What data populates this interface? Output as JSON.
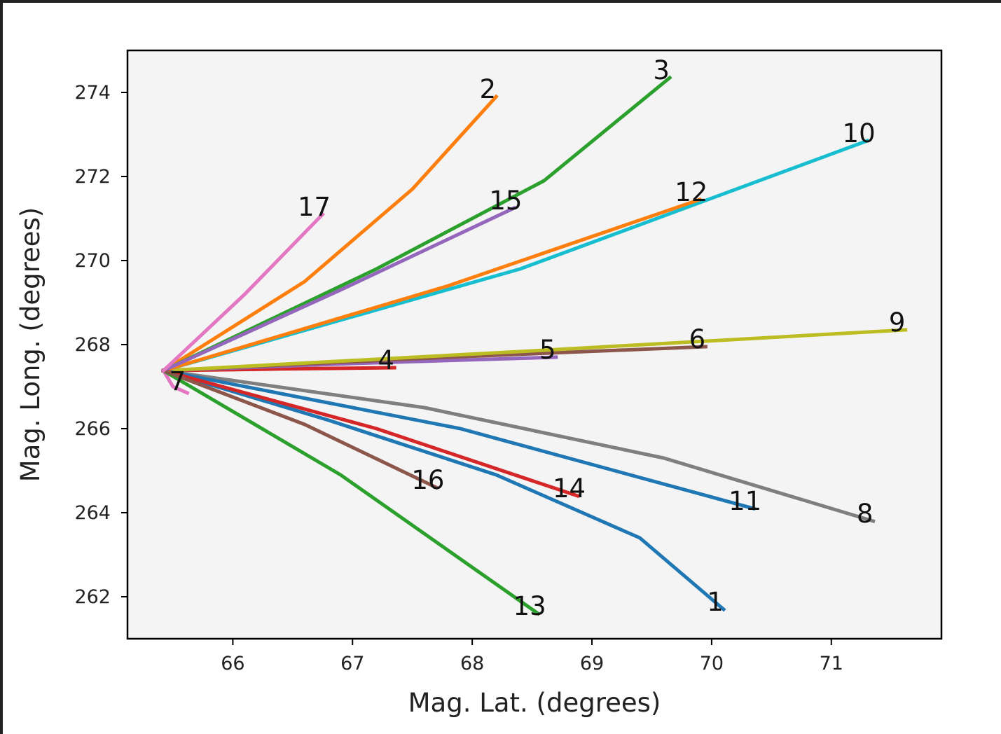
{
  "chart_data": {
    "type": "line",
    "title": "",
    "xlabel": "Mag. Lat. (degrees)",
    "ylabel": "Mag. Long. (degrees)",
    "xlim": [
      65.12,
      71.92
    ],
    "ylim": [
      261.0,
      275.0
    ],
    "xticks": [
      66,
      67,
      68,
      69,
      70,
      71
    ],
    "yticks": [
      262,
      264,
      266,
      268,
      270,
      272,
      274
    ],
    "grid": false,
    "legend": "none",
    "plot_background": "#f4f4f4",
    "origin": {
      "x": 65.42,
      "y": 267.38
    },
    "series": [
      {
        "label": "1",
        "color": "#1f77b4",
        "x": [
          65.42,
          66.8,
          68.2,
          69.4,
          70.1
        ],
        "y": [
          267.38,
          266.2,
          264.9,
          263.4,
          261.7
        ]
      },
      {
        "label": "2",
        "color": "#ff7f0e",
        "x": [
          65.42,
          66.6,
          67.5,
          68.2
        ],
        "y": [
          267.38,
          269.5,
          271.7,
          273.9
        ]
      },
      {
        "label": "3",
        "color": "#2ca02c",
        "x": [
          65.42,
          67.2,
          68.6,
          69.65
        ],
        "y": [
          267.38,
          269.8,
          271.9,
          274.35
        ]
      },
      {
        "label": "4",
        "color": "#d62728",
        "x": [
          65.42,
          66.4,
          67.35
        ],
        "y": [
          267.38,
          267.42,
          267.45
        ]
      },
      {
        "label": "5",
        "color": "#9467bd",
        "x": [
          65.42,
          67.0,
          68.7
        ],
        "y": [
          267.38,
          267.55,
          267.7
        ]
      },
      {
        "label": "6",
        "color": "#8c564b",
        "x": [
          65.42,
          67.8,
          69.95
        ],
        "y": [
          267.38,
          267.7,
          267.95
        ]
      },
      {
        "label": "7",
        "color": "#e377c2",
        "x": [
          65.42,
          65.5,
          65.62
        ],
        "y": [
          267.38,
          267.0,
          266.85
        ]
      },
      {
        "label": "8",
        "color": "#7f7f7f",
        "x": [
          65.42,
          67.6,
          69.6,
          71.35
        ],
        "y": [
          267.38,
          266.5,
          265.3,
          263.8
        ]
      },
      {
        "label": "9",
        "color": "#bcbd22",
        "x": [
          65.42,
          68.5,
          71.62
        ],
        "y": [
          267.38,
          267.85,
          268.35
        ]
      },
      {
        "label": "10",
        "color": "#17becf",
        "x": [
          65.42,
          68.4,
          71.3
        ],
        "y": [
          267.38,
          269.8,
          272.85
        ]
      },
      {
        "label": "11",
        "color": "#1f77b4",
        "x": [
          65.42,
          67.9,
          70.35
        ],
        "y": [
          267.38,
          266.0,
          264.1
        ]
      },
      {
        "label": "12",
        "color": "#ff7f0e",
        "x": [
          65.42,
          67.8,
          69.9
        ],
        "y": [
          267.38,
          269.4,
          271.45
        ]
      },
      {
        "label": "13",
        "color": "#2ca02c",
        "x": [
          65.42,
          66.9,
          68.55
        ],
        "y": [
          267.38,
          264.9,
          261.6
        ]
      },
      {
        "label": "14",
        "color": "#d62728",
        "x": [
          65.42,
          67.2,
          68.88
        ],
        "y": [
          267.38,
          266.0,
          264.4
        ]
      },
      {
        "label": "15",
        "color": "#9467bd",
        "x": [
          65.42,
          66.9,
          68.35
        ],
        "y": [
          267.38,
          269.3,
          271.25
        ]
      },
      {
        "label": "16",
        "color": "#8c564b",
        "x": [
          65.42,
          66.6,
          67.7
        ],
        "y": [
          267.38,
          266.1,
          264.6
        ]
      },
      {
        "label": "17",
        "color": "#e377c2",
        "x": [
          65.42,
          66.1,
          66.75
        ],
        "y": [
          267.38,
          269.2,
          271.1
        ]
      }
    ]
  }
}
